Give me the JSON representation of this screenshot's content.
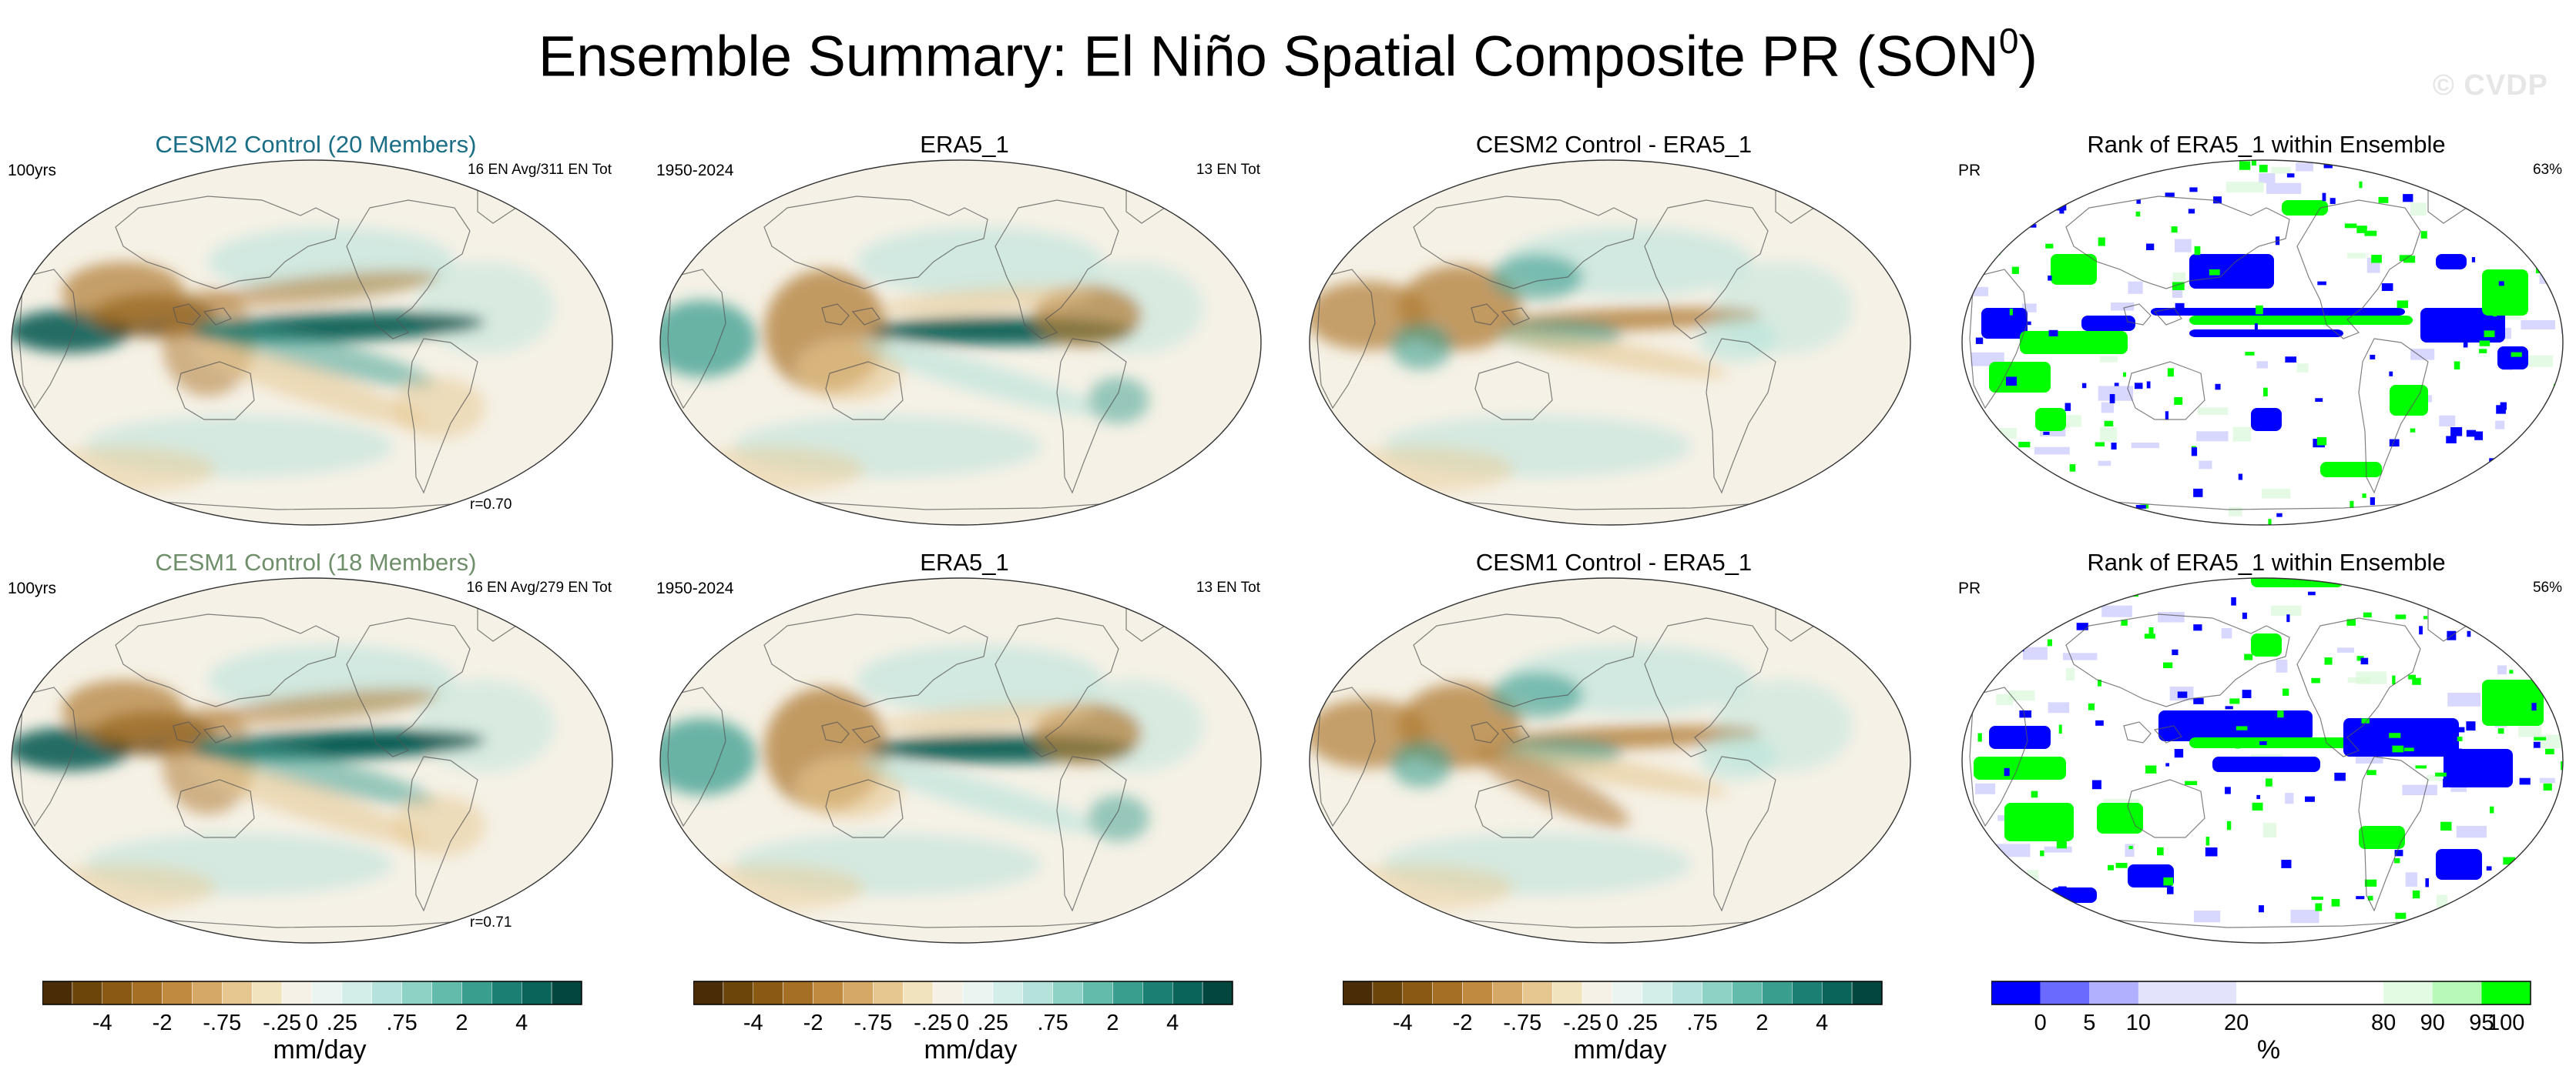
{
  "figure": {
    "title_main": "Ensemble Summary: El Niño Spatial Composite PR (SON",
    "title_sup": "0",
    "title_close": ")",
    "watermark": "© CVDP"
  },
  "panels": [
    {
      "id": "p1",
      "title": "CESM2 Control (20 Members)",
      "title_color": "#1a6e86",
      "left": "100yrs",
      "right": "16 EN Avg/311 EN Tot",
      "corr": "r=0.70",
      "style": "model_a"
    },
    {
      "id": "p2",
      "title": "ERA5_1",
      "title_color": "#000000",
      "left": "1950-2024",
      "right": "13 EN Tot",
      "corr": "",
      "style": "obs"
    },
    {
      "id": "p3",
      "title": "CESM2 Control - ERA5_1",
      "title_color": "#000000",
      "left": "",
      "right": "",
      "corr": "",
      "style": "diff_a"
    },
    {
      "id": "p4",
      "title": "Rank of ERA5_1 within Ensemble",
      "title_color": "#000000",
      "left": "PR",
      "right": "63%",
      "corr": "",
      "style": "rank_a"
    },
    {
      "id": "p5",
      "title": "CESM1 Control (18 Members)",
      "title_color": "#6f8f6a",
      "left": "100yrs",
      "right": "16 EN Avg/279 EN Tot",
      "corr": "r=0.71",
      "style": "model_b"
    },
    {
      "id": "p6",
      "title": "ERA5_1",
      "title_color": "#000000",
      "left": "1950-2024",
      "right": "13 EN Tot",
      "corr": "",
      "style": "obs"
    },
    {
      "id": "p7",
      "title": "CESM1 Control - ERA5_1",
      "title_color": "#000000",
      "left": "",
      "right": "",
      "corr": "",
      "style": "diff_b"
    },
    {
      "id": "p8",
      "title": "Rank of ERA5_1 within Ensemble",
      "title_color": "#000000",
      "left": "PR",
      "right": "56%",
      "corr": "",
      "style": "rank_b"
    }
  ],
  "colorbars": {
    "precip": {
      "colors": [
        "#4a2d06",
        "#6b4509",
        "#8a5a14",
        "#a56f25",
        "#c08a40",
        "#d5a865",
        "#e6c78f",
        "#f2e3bf",
        "#f6f1e6",
        "#eaf5f2",
        "#d3eee9",
        "#b5e2da",
        "#8dd2c5",
        "#62bbab",
        "#3a9e8f",
        "#1b7f73",
        "#0a645a",
        "#03463f"
      ],
      "ticks": [
        "-4",
        "-2",
        "-.75",
        "-.25",
        "0",
        ".25",
        ".75",
        "2",
        "4"
      ],
      "label": "mm/day"
    },
    "rank": {
      "colors": [
        "#0000ff",
        "#6a6aff",
        "#b0b0ff",
        "#e3e3fb",
        "#ffffff",
        "#ffffff",
        "#e2fbe2",
        "#b8f8b8",
        "#00ff00"
      ],
      "ticks": [
        "0",
        "5",
        "10",
        "20",
        "80",
        "90",
        "95",
        "100"
      ],
      "label": "%"
    }
  },
  "map_colors": {
    "ocean_bg": "#f5f1e6",
    "brown_dark": "#6b4509",
    "brown_mid": "#b07c35",
    "brown_light": "#e6c78f",
    "teal_dark": "#05564e",
    "teal_mid": "#3a9e8f",
    "teal_light": "#b5e2da",
    "coast": "#555555",
    "rank_blue": "#0000ff",
    "rank_green": "#00ff00",
    "rank_lightblue": "#c8c8ff",
    "rank_lightgreen": "#d8f8d8"
  }
}
